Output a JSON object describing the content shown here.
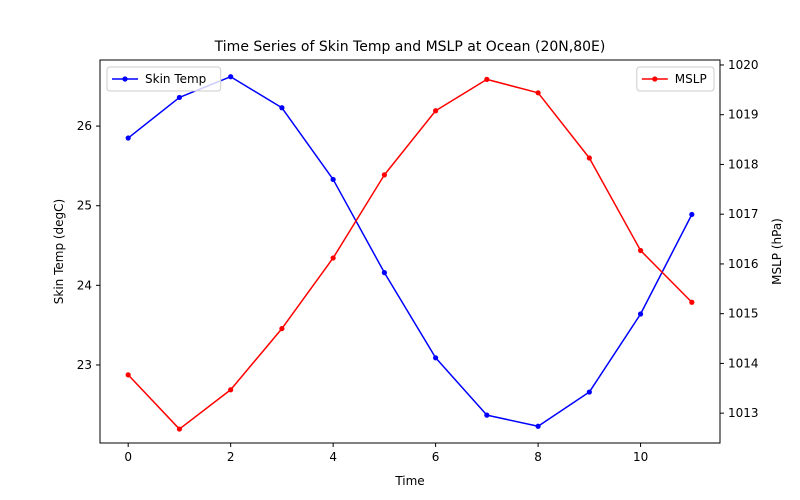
{
  "chart_data": {
    "type": "line",
    "title": "Time Series of Skin Temp and MSLP at Ocean (20N,80E)",
    "xlabel": "Time",
    "ylabel_left": "Skin Temp (degC)",
    "ylabel_right": "MSLP (hPa)",
    "x": [
      0,
      1,
      2,
      3,
      4,
      5,
      6,
      7,
      8,
      9,
      10,
      11
    ],
    "xlim": [
      -0.55,
      11.55
    ],
    "xticks": [
      0,
      2,
      4,
      6,
      8,
      10
    ],
    "ylim_left": [
      22.02,
      26.83
    ],
    "yticks_left": [
      23,
      24,
      25,
      26
    ],
    "ylim_right": [
      1012.4,
      1020.1
    ],
    "yticks_right": [
      1013,
      1014,
      1015,
      1016,
      1017,
      1018,
      1019,
      1020
    ],
    "grid": false,
    "series": [
      {
        "name": "Skin Temp",
        "axis": "left",
        "color": "#0000ff",
        "marker": "dot",
        "legend": "top-left",
        "values": [
          25.85,
          26.36,
          26.62,
          26.23,
          25.33,
          24.16,
          23.09,
          22.37,
          22.23,
          22.66,
          23.64,
          24.89
        ]
      },
      {
        "name": "MSLP",
        "axis": "right",
        "color": "#ff0000",
        "marker": "dot",
        "legend": "top-right",
        "values": [
          1013.77,
          1012.68,
          1013.47,
          1014.7,
          1016.12,
          1017.79,
          1019.08,
          1019.71,
          1019.44,
          1018.13,
          1016.27,
          1015.23
        ]
      }
    ]
  }
}
